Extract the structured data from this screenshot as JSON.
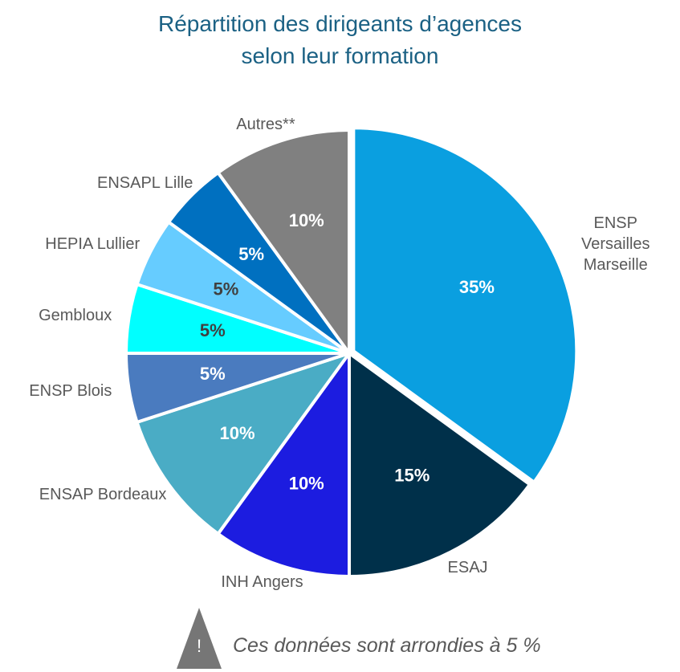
{
  "chart_data": {
    "type": "pie",
    "title": "Répartition des dirigeants d’agences\nselon leur formation",
    "categories": [
      "ENSP Versailles\nMarseille",
      "ESAJ",
      "INH Angers",
      "ENSAP Bordeaux",
      "ENSP Blois",
      "Gembloux",
      "HEPIA Lullier",
      "ENSAPL Lille",
      "Autres**"
    ],
    "values": [
      35,
      15,
      10,
      10,
      5,
      5,
      5,
      5,
      10
    ],
    "value_labels": [
      "35%",
      "15%",
      "10%",
      "10%",
      "5%",
      "5%",
      "5%",
      "5%",
      "10%"
    ],
    "colors": [
      "#0a9fe0",
      "#00304a",
      "#1c1ce0",
      "#4aacc5",
      "#4a7bbf",
      "#00ffff",
      "#66ccff",
      "#0070c0",
      "#808080"
    ],
    "note_icon": "!",
    "note": "Ces données sont arrondies à 5 %"
  }
}
